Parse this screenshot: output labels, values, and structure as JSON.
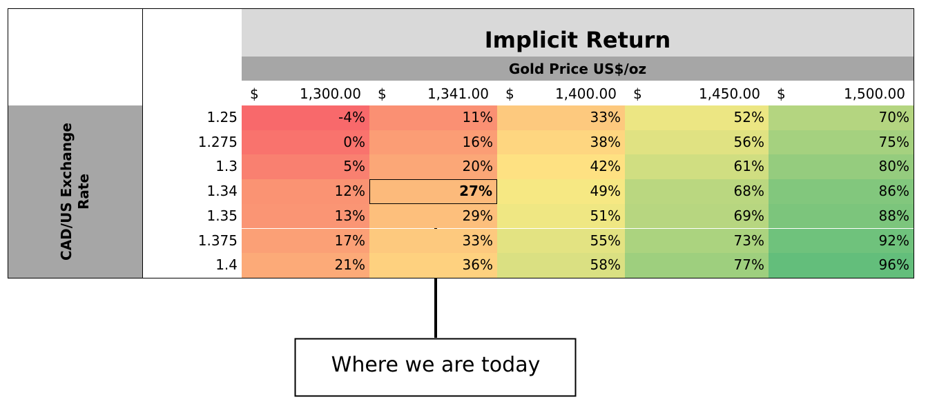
{
  "table": {
    "title": "Implicit Return",
    "subtitle": "Gold Price US$/oz",
    "row_axis_label": "CAD/US Exchange Rate",
    "columns": [
      {
        "symbol": "$",
        "amount": "1,300.00"
      },
      {
        "symbol": "$",
        "amount": "1,341.00"
      },
      {
        "symbol": "$",
        "amount": "1,400.00"
      },
      {
        "symbol": "$",
        "amount": "1,450.00"
      },
      {
        "symbol": "$",
        "amount": "1,500.00"
      }
    ],
    "rows": [
      {
        "rate": "1.25",
        "cells": [
          "-4%",
          "11%",
          "33%",
          "52%",
          "70%"
        ],
        "colors": [
          "#f8696b",
          "#fa9073",
          "#fdc97e",
          "#ece683",
          "#b4d580"
        ]
      },
      {
        "rate": "1.275",
        "cells": [
          "0%",
          "16%",
          "38%",
          "56%",
          "75%"
        ],
        "colors": [
          "#f9736d",
          "#fb9d75",
          "#fed680",
          "#e0e282",
          "#a5d17f"
        ]
      },
      {
        "rate": "1.3",
        "cells": [
          "5%",
          "20%",
          "42%",
          "61%",
          "80%"
        ],
        "colors": [
          "#f98070",
          "#fba777",
          "#fee182",
          "#d0de81",
          "#95cc7e"
        ]
      },
      {
        "rate": "1.34",
        "cells": [
          "12%",
          "27%",
          "49%",
          "68%",
          "86%"
        ],
        "colors": [
          "#fa9373",
          "#fcba7b",
          "#f6e883",
          "#bad780",
          "#82c77d"
        ]
      },
      {
        "rate": "1.35",
        "cells": [
          "13%",
          "29%",
          "51%",
          "69%",
          "88%"
        ],
        "colors": [
          "#fa9574",
          "#fdbf7c",
          "#efe783",
          "#b7d680",
          "#7cc57c"
        ]
      },
      {
        "rate": "1.375",
        "cells": [
          "17%",
          "33%",
          "55%",
          "73%",
          "92%"
        ],
        "colors": [
          "#fba076",
          "#fdc97e",
          "#e3e382",
          "#abd37f",
          "#6fc27c"
        ]
      },
      {
        "rate": "1.4",
        "cells": [
          "21%",
          "36%",
          "58%",
          "77%",
          "96%"
        ],
        "colors": [
          "#fcaa78",
          "#fed17f",
          "#dae082",
          "#9ecf7e",
          "#63be7b"
        ]
      }
    ],
    "highlight": [
      3,
      1
    ],
    "callout": "Where we are today"
  }
}
